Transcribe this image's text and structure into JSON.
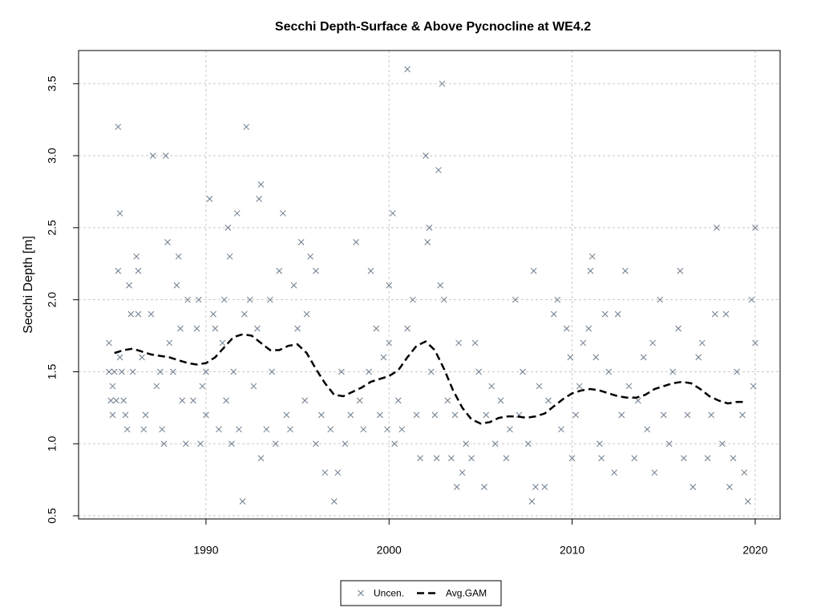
{
  "chart_data": {
    "type": "scatter",
    "title": "Secchi Depth-Surface & Above Pycnocline at WE4.2",
    "ylabel": "Secchi Depth [m]",
    "xlim": [
      1983.04,
      2021.36
    ],
    "ylim": [
      0.478,
      3.73
    ],
    "xticks": [
      1990,
      2000,
      2010,
      2020
    ],
    "yticks": [
      0.5,
      {
        "value": 1,
        "label": "1.0"
      },
      1.5,
      {
        "value": 2,
        "label": "2.0"
      },
      2.5,
      {
        "value": 3,
        "label": "3.0"
      },
      3.5
    ],
    "grid": true,
    "legend": "bottom",
    "series": [
      {
        "name": "Uncen.",
        "type": "scatter",
        "color": "#6c7b8b",
        "x": [
          1984.7,
          1984.7,
          1984.8,
          1984.9,
          1984.9,
          1985.0,
          1985.1,
          1985.2,
          1985.3,
          1985.2,
          1985.3,
          1985.4,
          1985.5,
          1985.6,
          1985.7,
          1985.8,
          1985.9,
          1986.0,
          1986.2,
          1986.3,
          1986.3,
          1986.5,
          1986.6,
          1986.7,
          1987.1,
          1987.0,
          1987.3,
          1987.5,
          1987.6,
          1987.7,
          1987.8,
          1987.9,
          1988.0,
          1988.2,
          1988.4,
          1988.5,
          1988.6,
          1988.7,
          1988.9,
          1989.0,
          1989.3,
          1989.5,
          1989.6,
          1989.7,
          1989.8,
          1990.0,
          1990.0,
          1990.2,
          1990.4,
          1990.5,
          1990.7,
          1990.9,
          1991.0,
          1991.1,
          1991.2,
          1991.3,
          1991.4,
          1991.5,
          1991.7,
          1991.8,
          1992.0,
          1992.1,
          1992.2,
          1992.4,
          1992.6,
          1992.8,
          1992.9,
          1993.0,
          1993.0,
          1993.3,
          1993.5,
          1993.6,
          1993.8,
          1994.0,
          1994.2,
          1994.4,
          1994.6,
          1994.8,
          1995.0,
          1995.2,
          1995.4,
          1995.5,
          1995.7,
          1996.0,
          1996.0,
          1996.3,
          1996.5,
          1996.8,
          1997.0,
          1997.2,
          1997.4,
          1997.6,
          1997.9,
          1998.2,
          1998.4,
          1998.6,
          1998.9,
          1999.0,
          1999.3,
          1999.5,
          1999.7,
          1999.9,
          2000.0,
          2000.0,
          2000.2,
          2000.3,
          2000.5,
          2000.7,
          2001.0,
          2001.0,
          2001.3,
          2001.5,
          2001.7,
          2002.0,
          2002.1,
          2002.2,
          2002.3,
          2002.5,
          2002.7,
          2002.6,
          2002.8,
          2002.9,
          2003.0,
          2003.2,
          2003.4,
          2003.6,
          2003.7,
          2003.8,
          2004.0,
          2004.2,
          2004.5,
          2004.7,
          2004.9,
          2005.2,
          2005.3,
          2005.6,
          2005.8,
          2006.1,
          2006.4,
          2006.6,
          2006.9,
          2007.1,
          2007.3,
          2007.6,
          2007.8,
          2007.9,
          2008.0,
          2008.2,
          2008.5,
          2008.7,
          2009.0,
          2009.2,
          2009.4,
          2009.7,
          2009.9,
          2010.0,
          2010.2,
          2010.4,
          2010.6,
          2010.9,
          2011.0,
          2011.1,
          2011.3,
          2011.5,
          2011.6,
          2011.8,
          2012.0,
          2012.3,
          2012.5,
          2012.7,
          2012.9,
          2013.1,
          2013.4,
          2013.6,
          2013.9,
          2014.1,
          2014.4,
          2014.5,
          2014.8,
          2015.0,
          2015.3,
          2015.5,
          2015.8,
          2015.9,
          2016.1,
          2016.3,
          2016.6,
          2016.9,
          2017.1,
          2017.4,
          2017.6,
          2017.8,
          2017.9,
          2018.2,
          2018.4,
          2018.6,
          2018.8,
          2019.0,
          2019.3,
          2019.4,
          2019.6,
          2019.8,
          2019.9,
          2020.0,
          2020.0
        ],
        "values": [
          1.7,
          1.5,
          1.3,
          1.2,
          1.4,
          1.5,
          1.3,
          3.2,
          2.6,
          2.2,
          1.6,
          1.5,
          1.3,
          1.2,
          1.1,
          2.1,
          1.9,
          1.5,
          2.3,
          2.2,
          1.9,
          1.6,
          1.1,
          1.2,
          3.0,
          1.9,
          1.4,
          1.5,
          1.1,
          1.0,
          3.0,
          2.4,
          1.7,
          1.5,
          2.1,
          2.3,
          1.8,
          1.3,
          1.0,
          2.0,
          1.3,
          1.8,
          2.0,
          1.0,
          1.4,
          1.2,
          1.5,
          2.7,
          1.9,
          1.8,
          1.1,
          1.7,
          2.0,
          1.3,
          2.5,
          2.3,
          1.0,
          1.5,
          2.6,
          1.1,
          0.6,
          1.9,
          3.2,
          2.0,
          1.4,
          1.8,
          2.7,
          2.8,
          0.9,
          1.1,
          2.0,
          1.5,
          1.0,
          2.2,
          2.6,
          1.2,
          1.1,
          2.1,
          1.8,
          2.4,
          1.3,
          1.9,
          2.3,
          1.0,
          2.2,
          1.2,
          0.8,
          1.1,
          0.6,
          0.8,
          1.5,
          1.0,
          1.2,
          2.4,
          1.3,
          1.1,
          1.5,
          2.2,
          1.8,
          1.2,
          1.6,
          1.1,
          1.7,
          2.1,
          2.6,
          1.0,
          1.3,
          1.1,
          3.6,
          1.8,
          2.0,
          1.2,
          0.9,
          3.0,
          2.4,
          2.5,
          1.5,
          1.2,
          2.9,
          0.9,
          2.1,
          3.5,
          2.0,
          1.3,
          0.9,
          1.2,
          0.7,
          1.7,
          0.8,
          1.0,
          0.9,
          1.7,
          1.5,
          0.7,
          1.2,
          1.4,
          1.0,
          1.3,
          0.9,
          1.1,
          2.0,
          1.2,
          1.5,
          1.0,
          0.6,
          2.2,
          0.7,
          1.4,
          0.7,
          1.3,
          1.9,
          2.0,
          1.1,
          1.8,
          1.6,
          0.9,
          1.2,
          1.4,
          1.7,
          1.8,
          2.2,
          2.3,
          1.6,
          1.0,
          0.9,
          1.9,
          1.5,
          0.8,
          1.9,
          1.2,
          2.2,
          1.4,
          0.9,
          1.3,
          1.6,
          1.1,
          1.7,
          0.8,
          2.0,
          1.2,
          1.0,
          1.5,
          1.8,
          2.2,
          0.9,
          1.2,
          0.7,
          1.6,
          1.7,
          0.9,
          1.2,
          1.9,
          2.5,
          1.0,
          1.9,
          0.7,
          0.9,
          1.5,
          1.2,
          0.8,
          0.6,
          2.0,
          1.4,
          2.5,
          1.7
        ]
      },
      {
        "name": "Avg.GAM",
        "type": "line",
        "color": "#000000",
        "dash": "dashed",
        "x": [
          1985,
          1985.5,
          1986,
          1986.5,
          1987,
          1988,
          1988.5,
          1989,
          1989.5,
          1990,
          1990.5,
          1991,
          1991.5,
          1992,
          1992.5,
          1993,
          1993.5,
          1994,
          1994.5,
          1995,
          1995.5,
          1996,
          1996.5,
          1997,
          1997.5,
          1998,
          1998.5,
          1999,
          1999.5,
          2000,
          2000.5,
          2001,
          2001.5,
          2002,
          2002.5,
          2003,
          2003.5,
          2004,
          2004.5,
          2005,
          2005.5,
          2006,
          2006.5,
          2007,
          2007.5,
          2008,
          2008.5,
          2009,
          2009.5,
          2010,
          2010.5,
          2011,
          2011.5,
          2012,
          2012.5,
          2013,
          2013.5,
          2014,
          2014.5,
          2015,
          2015.5,
          2016,
          2016.5,
          2017,
          2017.5,
          2018,
          2018.5,
          2019,
          2019.5
        ],
        "values": [
          1.63,
          1.65,
          1.66,
          1.64,
          1.62,
          1.6,
          1.58,
          1.56,
          1.55,
          1.56,
          1.6,
          1.67,
          1.74,
          1.76,
          1.75,
          1.7,
          1.65,
          1.65,
          1.68,
          1.69,
          1.63,
          1.52,
          1.42,
          1.34,
          1.33,
          1.36,
          1.39,
          1.43,
          1.45,
          1.47,
          1.51,
          1.6,
          1.68,
          1.71,
          1.65,
          1.52,
          1.37,
          1.25,
          1.17,
          1.14,
          1.15,
          1.18,
          1.19,
          1.19,
          1.18,
          1.19,
          1.21,
          1.26,
          1.31,
          1.35,
          1.37,
          1.38,
          1.37,
          1.35,
          1.33,
          1.32,
          1.32,
          1.34,
          1.38,
          1.4,
          1.42,
          1.43,
          1.42,
          1.38,
          1.33,
          1.3,
          1.28,
          1.29,
          1.29
        ]
      }
    ]
  }
}
